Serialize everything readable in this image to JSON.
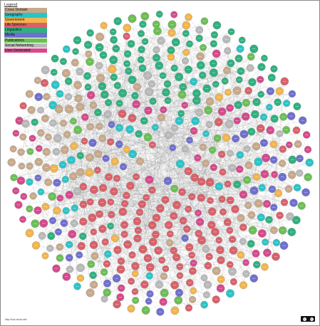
{
  "legend": {
    "title": "Legend",
    "items": [
      {
        "label": "Cross Domain",
        "color": "#c8a98a"
      },
      {
        "label": "Geography",
        "color": "#2ac4c8"
      },
      {
        "label": "Government",
        "color": "#f2b54b"
      },
      {
        "label": "Life Sciences",
        "color": "#d9616a"
      },
      {
        "label": "Linguistics",
        "color": "#2fb07f"
      },
      {
        "label": "Media",
        "color": "#6f6fcf"
      },
      {
        "label": "Publications",
        "color": "#6bbf54"
      },
      {
        "label": "Social Networking",
        "color": "#b9b9b9"
      },
      {
        "label": "User Generated",
        "color": "#d64a8c"
      }
    ]
  },
  "footer": {
    "url": "http://lod-cloud.net/"
  },
  "license": {
    "icon": "creative-commons-icon",
    "glyphs": [
      "cc",
      "by"
    ]
  },
  "diagram": {
    "edge_color": "#7d7d7d",
    "node_stroke": "#8b8b8b"
  }
}
